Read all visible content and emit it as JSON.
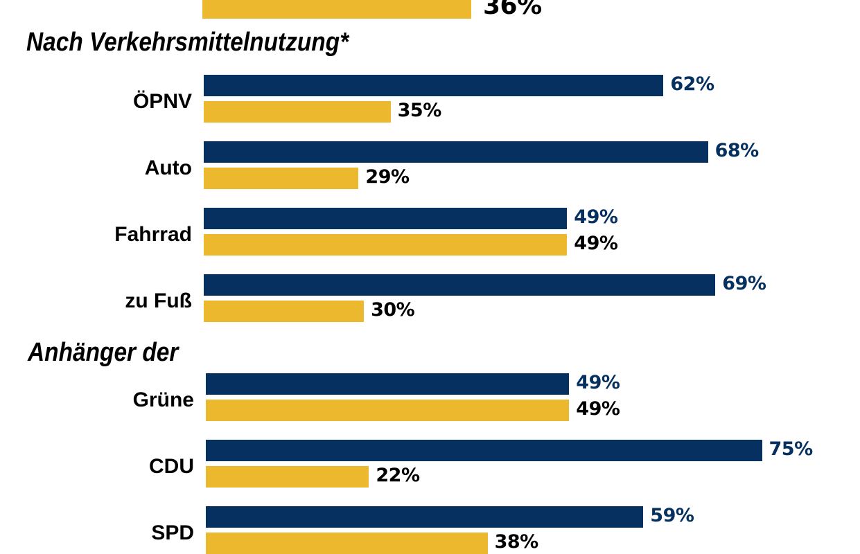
{
  "colors": {
    "series_a": "#05305f",
    "series_b": "#ecb92e",
    "label_a": "#05305f",
    "label_b": "#000000"
  },
  "chart_data": {
    "type": "bar",
    "orientation": "horizontal",
    "grouped": true,
    "unit": "%",
    "top_partial": {
      "series": "b",
      "value": 36,
      "label": "36%"
    },
    "sections": [
      {
        "title": "Nach Verkehrsmittelnutzung*",
        "categories": [
          {
            "name": "ÖPNV",
            "a": 62,
            "a_label": "62%",
            "b": 35,
            "b_label": "35%"
          },
          {
            "name": "Auto",
            "a": 68,
            "a_label": "68%",
            "b": 29,
            "b_label": "29%"
          },
          {
            "name": "Fahrrad",
            "a": 49,
            "a_label": "49%",
            "b": 49,
            "b_label": "49%"
          },
          {
            "name": "zu Fuß",
            "a": 69,
            "a_label": "69%",
            "b": 30,
            "b_label": "30%"
          }
        ]
      },
      {
        "title": "Anhänger der",
        "categories": [
          {
            "name": "Grüne",
            "a": 49,
            "a_label": "49%",
            "b": 49,
            "b_label": "49%"
          },
          {
            "name": "CDU",
            "a": 75,
            "a_label": "75%",
            "b": 22,
            "b_label": "22%"
          },
          {
            "name": "SPD",
            "a": 59,
            "a_label": "59%",
            "b": 38,
            "b_label": "38%"
          }
        ]
      }
    ],
    "xlim": [
      0,
      100
    ],
    "grid": false,
    "legend": "none"
  }
}
